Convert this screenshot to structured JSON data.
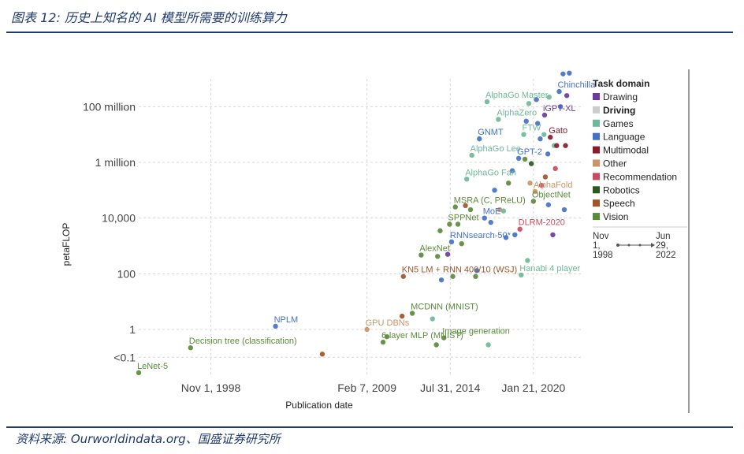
{
  "header": {
    "title": "图表 12: 历史上知名的 AI 模型所需要的训练算力"
  },
  "source": {
    "text": "资料来源: Ourworldindata.org、国盛证券研究所"
  },
  "chart_data": {
    "type": "scatter",
    "title": "",
    "xlabel": "Publication date",
    "ylabel": "petaFLOP",
    "y_scale": "log",
    "x_ticks": [
      {
        "date": "1998-11-01",
        "label": "Nov 1, 1998"
      },
      {
        "date": "2009-02-07",
        "label": "Feb 7, 2009"
      },
      {
        "date": "2014-07-31",
        "label": "Jul 31, 2014"
      },
      {
        "date": "2020-01-21",
        "label": "Jan 21, 2020"
      }
    ],
    "y_ticks": [
      {
        "value": 0.1,
        "label": "<0.1"
      },
      {
        "value": 1,
        "label": "1"
      },
      {
        "value": 100,
        "label": "100"
      },
      {
        "value": 10000,
        "label": "10,000"
      },
      {
        "value": 1000000,
        "label": "1 million"
      },
      {
        "value": 100000000,
        "label": "100 million"
      }
    ],
    "xlim": [
      "1994-02-01",
      "2023-05-01"
    ],
    "ylim": [
      0.02,
      1000000000
    ],
    "grid": true,
    "legend": {
      "title": "Task domain",
      "placement": "right",
      "items": [
        {
          "name": "Drawing",
          "color": "#6a3d9a",
          "muted": false
        },
        {
          "name": "Driving",
          "color": "#cccccc",
          "muted": true
        },
        {
          "name": "Games",
          "color": "#6fb89a",
          "muted": false
        },
        {
          "name": "Language",
          "color": "#4472c4",
          "muted": false
        },
        {
          "name": "Multimodal",
          "color": "#8b1a2b",
          "muted": false
        },
        {
          "name": "Other",
          "color": "#c8956a",
          "muted": false
        },
        {
          "name": "Recommendation",
          "color": "#c94a60",
          "muted": false
        },
        {
          "name": "Robotics",
          "color": "#2a5a1e",
          "muted": false
        },
        {
          "name": "Speech",
          "color": "#a0552a",
          "muted": false
        },
        {
          "name": "Vision",
          "color": "#5b8a3a",
          "muted": false
        }
      ]
    },
    "timeline": {
      "start": "Nov\n1,\n1998",
      "end": "Jun\n29,\n2022"
    },
    "points": [
      {
        "date": "1994-02-01",
        "value": 0.028,
        "domain": "Vision",
        "label": "LeNet-5"
      },
      {
        "date": "1997-07-01",
        "value": 0.22,
        "domain": "Vision",
        "label": "Decision tree (classification)"
      },
      {
        "date": "2003-02-01",
        "value": 1.3,
        "domain": "Language",
        "label": "NPLM"
      },
      {
        "date": "2006-03-01",
        "value": 0.13,
        "domain": "Speech",
        "label": ""
      },
      {
        "date": "2009-02-07",
        "value": 1.0,
        "domain": "Other",
        "label": "GPU DBNs"
      },
      {
        "date": "2010-03-01",
        "value": 0.35,
        "domain": "Vision",
        "label": "6-layer MLP (MNIST)"
      },
      {
        "date": "2010-06-01",
        "value": 0.55,
        "domain": "Vision",
        "label": ""
      },
      {
        "date": "2011-06-01",
        "value": 3.0,
        "domain": "Speech",
        "label": ""
      },
      {
        "date": "2011-07-01",
        "value": 80,
        "domain": "Speech",
        "label": "KN5 LM + RNN 400/10 (WSJ)"
      },
      {
        "date": "2012-02-01",
        "value": 3.8,
        "domain": "Vision",
        "label": "MCDNN (MNIST)"
      },
      {
        "date": "2012-09-01",
        "value": 470,
        "domain": "Vision",
        "label": "AlexNet"
      },
      {
        "date": "2013-06-01",
        "value": 2.4,
        "domain": "Games",
        "label": ""
      },
      {
        "date": "2013-09-01",
        "value": 0.28,
        "domain": "Vision",
        "label": ""
      },
      {
        "date": "2013-10-01",
        "value": 420,
        "domain": "Vision",
        "label": ""
      },
      {
        "date": "2013-12-01",
        "value": 3500,
        "domain": "Vision",
        "label": ""
      },
      {
        "date": "2014-01-01",
        "value": 60,
        "domain": "Language",
        "label": ""
      },
      {
        "date": "2014-03-01",
        "value": 0.5,
        "domain": "Vision",
        "label": "Image generation"
      },
      {
        "date": "2014-06-01",
        "value": 500,
        "domain": "Drawing",
        "label": ""
      },
      {
        "date": "2014-07-15",
        "value": 6000,
        "domain": "Vision",
        "label": "SPPNet"
      },
      {
        "date": "2014-09-01",
        "value": 1400,
        "domain": "Language",
        "label": "RNNsearch-50*"
      },
      {
        "date": "2014-10-01",
        "value": 80,
        "domain": "Vision",
        "label": ""
      },
      {
        "date": "2014-12-01",
        "value": 25000,
        "domain": "Vision",
        "label": "MSRA (C, PReLU)"
      },
      {
        "date": "2015-02-01",
        "value": 6000,
        "domain": "Vision",
        "label": ""
      },
      {
        "date": "2015-05-01",
        "value": 1200,
        "domain": "Vision",
        "label": ""
      },
      {
        "date": "2015-08-01",
        "value": 28000,
        "domain": "Speech",
        "label": ""
      },
      {
        "date": "2015-09-01",
        "value": 250000,
        "domain": "Games",
        "label": "AlphaGo Fan"
      },
      {
        "date": "2015-12-01",
        "value": 20000,
        "domain": "Vision",
        "label": ""
      },
      {
        "date": "2016-01-01",
        "value": 1800000,
        "domain": "Games",
        "label": "AlphaGo Lee"
      },
      {
        "date": "2016-04-01",
        "value": 80,
        "domain": "Vision",
        "label": ""
      },
      {
        "date": "2016-05-01",
        "value": 130,
        "domain": "Language",
        "label": ""
      },
      {
        "date": "2016-07-01",
        "value": 7000000,
        "domain": "Language",
        "label": "GNMT"
      },
      {
        "date": "2016-11-01",
        "value": 10000,
        "domain": "Language",
        "label": "MoE"
      },
      {
        "date": "2017-01-01",
        "value": 150000000,
        "domain": "Games",
        "label": "AlphaGo Master"
      },
      {
        "date": "2017-02-01",
        "value": 0.28,
        "domain": "Games",
        "label": ""
      },
      {
        "date": "2017-04-01",
        "value": 7000,
        "domain": "Language",
        "label": ""
      },
      {
        "date": "2017-07-01",
        "value": 100000,
        "domain": "Language",
        "label": ""
      },
      {
        "date": "2017-10-01",
        "value": 35000000,
        "domain": "Games",
        "label": "AlphaZero"
      },
      {
        "date": "2017-11-01",
        "value": 20000,
        "domain": "Other",
        "label": ""
      },
      {
        "date": "2018-02-01",
        "value": 18000,
        "domain": "Games",
        "label": ""
      },
      {
        "date": "2018-04-01",
        "value": 2000,
        "domain": "Language",
        "label": ""
      },
      {
        "date": "2018-06-01",
        "value": 180000,
        "domain": "Vision",
        "label": ""
      },
      {
        "date": "2018-09-01",
        "value": 500000,
        "domain": "Language",
        "label": ""
      },
      {
        "date": "2018-11-01",
        "value": 2500,
        "domain": "Language",
        "label": ""
      },
      {
        "date": "2019-02-01",
        "value": 1400000,
        "domain": "Language",
        "label": "GPT-2"
      },
      {
        "date": "2019-03-01",
        "value": 4000,
        "domain": "Recommendation",
        "label": "DLRM-2020"
      },
      {
        "date": "2019-04-01",
        "value": 90,
        "domain": "Games",
        "label": "Hanabi 4 player"
      },
      {
        "date": "2019-06-01",
        "value": 10000000,
        "domain": "Games",
        "label": "FTW"
      },
      {
        "date": "2019-07-01",
        "value": 1300000,
        "domain": "Vision",
        "label": ""
      },
      {
        "date": "2019-08-01",
        "value": 30000000,
        "domain": "Language",
        "label": ""
      },
      {
        "date": "2019-09-01",
        "value": 300,
        "domain": "Games",
        "label": ""
      },
      {
        "date": "2019-10-01",
        "value": 130000000,
        "domain": "Games",
        "label": ""
      },
      {
        "date": "2019-11-01",
        "value": 180000,
        "domain": "Other",
        "label": ""
      },
      {
        "date": "2019-12-01",
        "value": 900000,
        "domain": "Robotics",
        "label": ""
      },
      {
        "date": "2020-01-21",
        "value": 40000,
        "domain": "Vision",
        "label": "ObjectNet"
      },
      {
        "date": "2020-03-01",
        "value": 90000,
        "domain": "Other",
        "label": "AlphaFold"
      },
      {
        "date": "2020-04-01",
        "value": 180000000,
        "domain": "Language",
        "label": ""
      },
      {
        "date": "2020-05-01",
        "value": 25000000,
        "domain": "Language",
        "label": ""
      },
      {
        "date": "2020-07-01",
        "value": 7000000,
        "domain": "Language",
        "label": ""
      },
      {
        "date": "2020-08-01",
        "value": 150000,
        "domain": "Recommendation",
        "label": ""
      },
      {
        "date": "2020-10-01",
        "value": 10000000,
        "domain": "Games",
        "label": ""
      },
      {
        "date": "2020-10-15",
        "value": 50000000,
        "domain": "Drawing",
        "label": "iGPT-XL"
      },
      {
        "date": "2020-11-01",
        "value": 300000,
        "domain": "Speech",
        "label": ""
      },
      {
        "date": "2021-01-01",
        "value": 2000000,
        "domain": "Language",
        "label": ""
      },
      {
        "date": "2021-01-15",
        "value": 30000,
        "domain": "Language",
        "label": ""
      },
      {
        "date": "2021-02-01",
        "value": 220000000,
        "domain": "Games",
        "label": ""
      },
      {
        "date": "2021-03-01",
        "value": 8000000,
        "domain": "Multimodal",
        "label": "Gato"
      },
      {
        "date": "2021-05-01",
        "value": 2500,
        "domain": "Drawing",
        "label": ""
      },
      {
        "date": "2021-06-01",
        "value": 4000000,
        "domain": "Games",
        "label": ""
      },
      {
        "date": "2021-07-01",
        "value": 600000,
        "domain": "Recommendation",
        "label": ""
      },
      {
        "date": "2021-08-01",
        "value": 4000000,
        "domain": "Multimodal",
        "label": ""
      },
      {
        "date": "2021-10-01",
        "value": 350000000,
        "domain": "Language",
        "label": "Chinchilla"
      },
      {
        "date": "2021-11-01",
        "value": 100000000,
        "domain": "Language",
        "label": ""
      },
      {
        "date": "2022-01-01",
        "value": 1500000000,
        "domain": "Language",
        "label": ""
      },
      {
        "date": "2022-02-01",
        "value": 20000,
        "domain": "Language",
        "label": ""
      },
      {
        "date": "2022-03-01",
        "value": 4000000,
        "domain": "Multimodal",
        "label": ""
      },
      {
        "date": "2022-04-01",
        "value": 250000000,
        "domain": "Drawing",
        "label": ""
      },
      {
        "date": "2022-06-01",
        "value": 1600000000,
        "domain": "Language",
        "label": ""
      }
    ]
  }
}
